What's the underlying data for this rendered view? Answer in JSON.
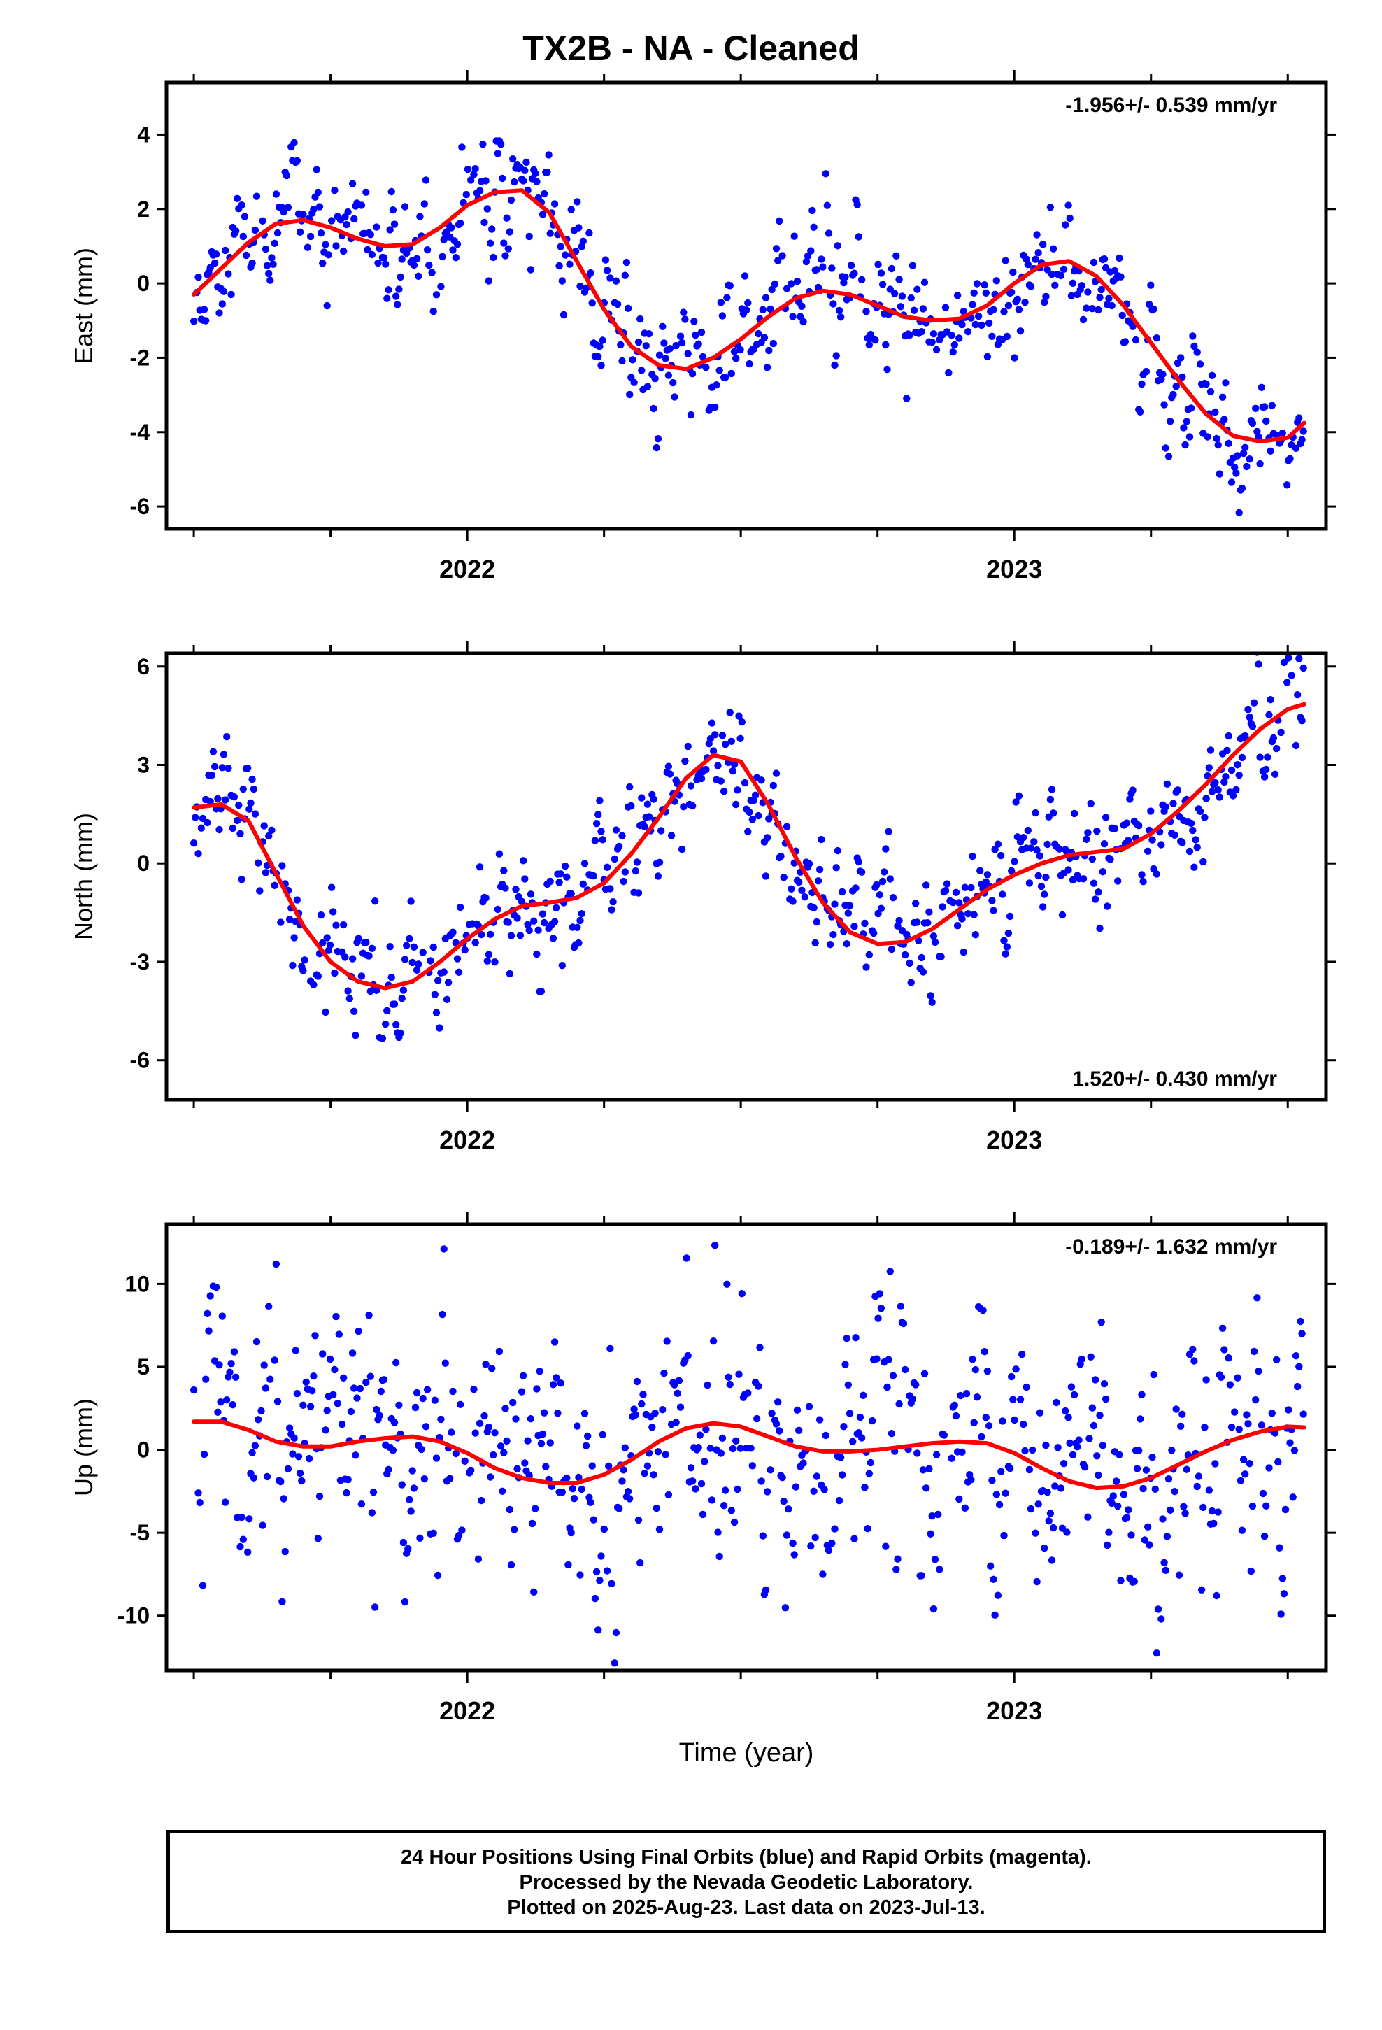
{
  "title": "TX2B  - NA - Cleaned",
  "footer": {
    "line1": "24 Hour Positions Using Final Orbits (blue) and Rapid Orbits (magenta).",
    "line2": "Processed by the Nevada Geodetic Laboratory.",
    "line3": "Plotted on 2025-Aug-23. Last data on 2023-Jul-13."
  },
  "colors": {
    "points": "#0000ff",
    "fit": "#ff0000",
    "frame": "#000000"
  },
  "chart_data": [
    {
      "type": "scatter",
      "ylabel": "East (mm)",
      "xlabel": "",
      "rate": "-1.956+/- 0.539 mm/yr",
      "rate_position": "top-right",
      "xlim": [
        2021.45,
        2023.57
      ],
      "ylim": [
        -6.6,
        5.4
      ],
      "xticks": [
        2022,
        2023
      ],
      "yticks": [
        4,
        2,
        0,
        -2,
        -4,
        -6
      ],
      "fit": {
        "x": [
          2021.5,
          2021.55,
          2021.6,
          2021.65,
          2021.7,
          2021.75,
          2021.8,
          2021.85,
          2021.9,
          2021.95,
          2022.0,
          2022.05,
          2022.1,
          2022.15,
          2022.2,
          2022.25,
          2022.3,
          2022.35,
          2022.4,
          2022.45,
          2022.5,
          2022.55,
          2022.6,
          2022.65,
          2022.7,
          2022.75,
          2022.8,
          2022.85,
          2022.9,
          2022.95,
          2023.0,
          2023.05,
          2023.1,
          2023.15,
          2023.2,
          2023.25,
          2023.3,
          2023.35,
          2023.4,
          2023.45,
          2023.5,
          2023.53
        ],
        "y": [
          -0.3,
          0.4,
          1.1,
          1.6,
          1.7,
          1.5,
          1.2,
          1.0,
          1.05,
          1.5,
          2.1,
          2.45,
          2.5,
          1.9,
          0.6,
          -0.7,
          -1.7,
          -2.2,
          -2.3,
          -2.0,
          -1.5,
          -0.9,
          -0.4,
          -0.2,
          -0.3,
          -0.6,
          -0.9,
          -1.0,
          -0.95,
          -0.6,
          0.0,
          0.5,
          0.6,
          0.2,
          -0.6,
          -1.6,
          -2.6,
          -3.5,
          -4.1,
          -4.25,
          -4.15,
          -3.75
        ]
      },
      "seed": 11,
      "noise": 0.9
    },
    {
      "type": "scatter",
      "ylabel": "North (mm)",
      "xlabel": "",
      "rate": "1.520+/- 0.430 mm/yr",
      "rate_position": "bottom-right",
      "xlim": [
        2021.45,
        2023.57
      ],
      "ylim": [
        -7.2,
        6.4
      ],
      "xticks": [
        2022,
        2023
      ],
      "yticks": [
        6,
        3,
        0,
        -3,
        -6
      ],
      "fit": {
        "x": [
          2021.5,
          2021.55,
          2021.6,
          2021.65,
          2021.7,
          2021.75,
          2021.8,
          2021.85,
          2021.9,
          2021.95,
          2022.0,
          2022.05,
          2022.1,
          2022.15,
          2022.2,
          2022.25,
          2022.3,
          2022.35,
          2022.4,
          2022.45,
          2022.5,
          2022.55,
          2022.6,
          2022.65,
          2022.7,
          2022.75,
          2022.8,
          2022.85,
          2022.9,
          2022.95,
          2023.0,
          2023.05,
          2023.1,
          2023.15,
          2023.2,
          2023.25,
          2023.3,
          2023.35,
          2023.4,
          2023.45,
          2023.5,
          2023.53
        ],
        "y": [
          1.7,
          1.8,
          1.3,
          -0.3,
          -1.9,
          -3.0,
          -3.6,
          -3.8,
          -3.6,
          -3.0,
          -2.3,
          -1.7,
          -1.3,
          -1.2,
          -1.05,
          -0.6,
          0.3,
          1.4,
          2.6,
          3.3,
          3.1,
          1.8,
          0.2,
          -1.2,
          -2.1,
          -2.45,
          -2.4,
          -2.0,
          -1.4,
          -0.8,
          -0.35,
          0.0,
          0.25,
          0.35,
          0.45,
          0.9,
          1.6,
          2.4,
          3.3,
          4.1,
          4.7,
          4.85
        ]
      },
      "seed": 23,
      "noise": 1.0
    },
    {
      "type": "scatter",
      "ylabel": "Up (mm)",
      "xlabel": "Time (year)",
      "rate": "-0.189+/- 1.632 mm/yr",
      "rate_position": "top-right",
      "xlim": [
        2021.45,
        2023.57
      ],
      "ylim": [
        -13.3,
        13.6
      ],
      "xticks": [
        2022,
        2023
      ],
      "yticks": [
        10,
        5,
        0,
        -5,
        -10
      ],
      "fit": {
        "x": [
          2021.5,
          2021.55,
          2021.6,
          2021.65,
          2021.7,
          2021.75,
          2021.8,
          2021.85,
          2021.9,
          2021.95,
          2022.0,
          2022.05,
          2022.1,
          2022.15,
          2022.2,
          2022.25,
          2022.3,
          2022.35,
          2022.4,
          2022.45,
          2022.5,
          2022.55,
          2022.6,
          2022.65,
          2022.7,
          2022.75,
          2022.8,
          2022.85,
          2022.9,
          2022.95,
          2023.0,
          2023.05,
          2023.1,
          2023.15,
          2023.2,
          2023.25,
          2023.3,
          2023.35,
          2023.4,
          2023.45,
          2023.5,
          2023.53
        ],
        "y": [
          1.7,
          1.7,
          1.2,
          0.5,
          0.2,
          0.2,
          0.5,
          0.7,
          0.8,
          0.5,
          -0.2,
          -1.1,
          -1.7,
          -2.0,
          -2.0,
          -1.5,
          -0.6,
          0.5,
          1.3,
          1.6,
          1.4,
          0.8,
          0.2,
          -0.1,
          -0.1,
          0.0,
          0.2,
          0.4,
          0.5,
          0.4,
          -0.2,
          -1.1,
          -1.9,
          -2.3,
          -2.2,
          -1.7,
          -0.9,
          -0.1,
          0.6,
          1.1,
          1.4,
          1.35
        ]
      },
      "seed": 37,
      "noise": 4.2
    }
  ]
}
